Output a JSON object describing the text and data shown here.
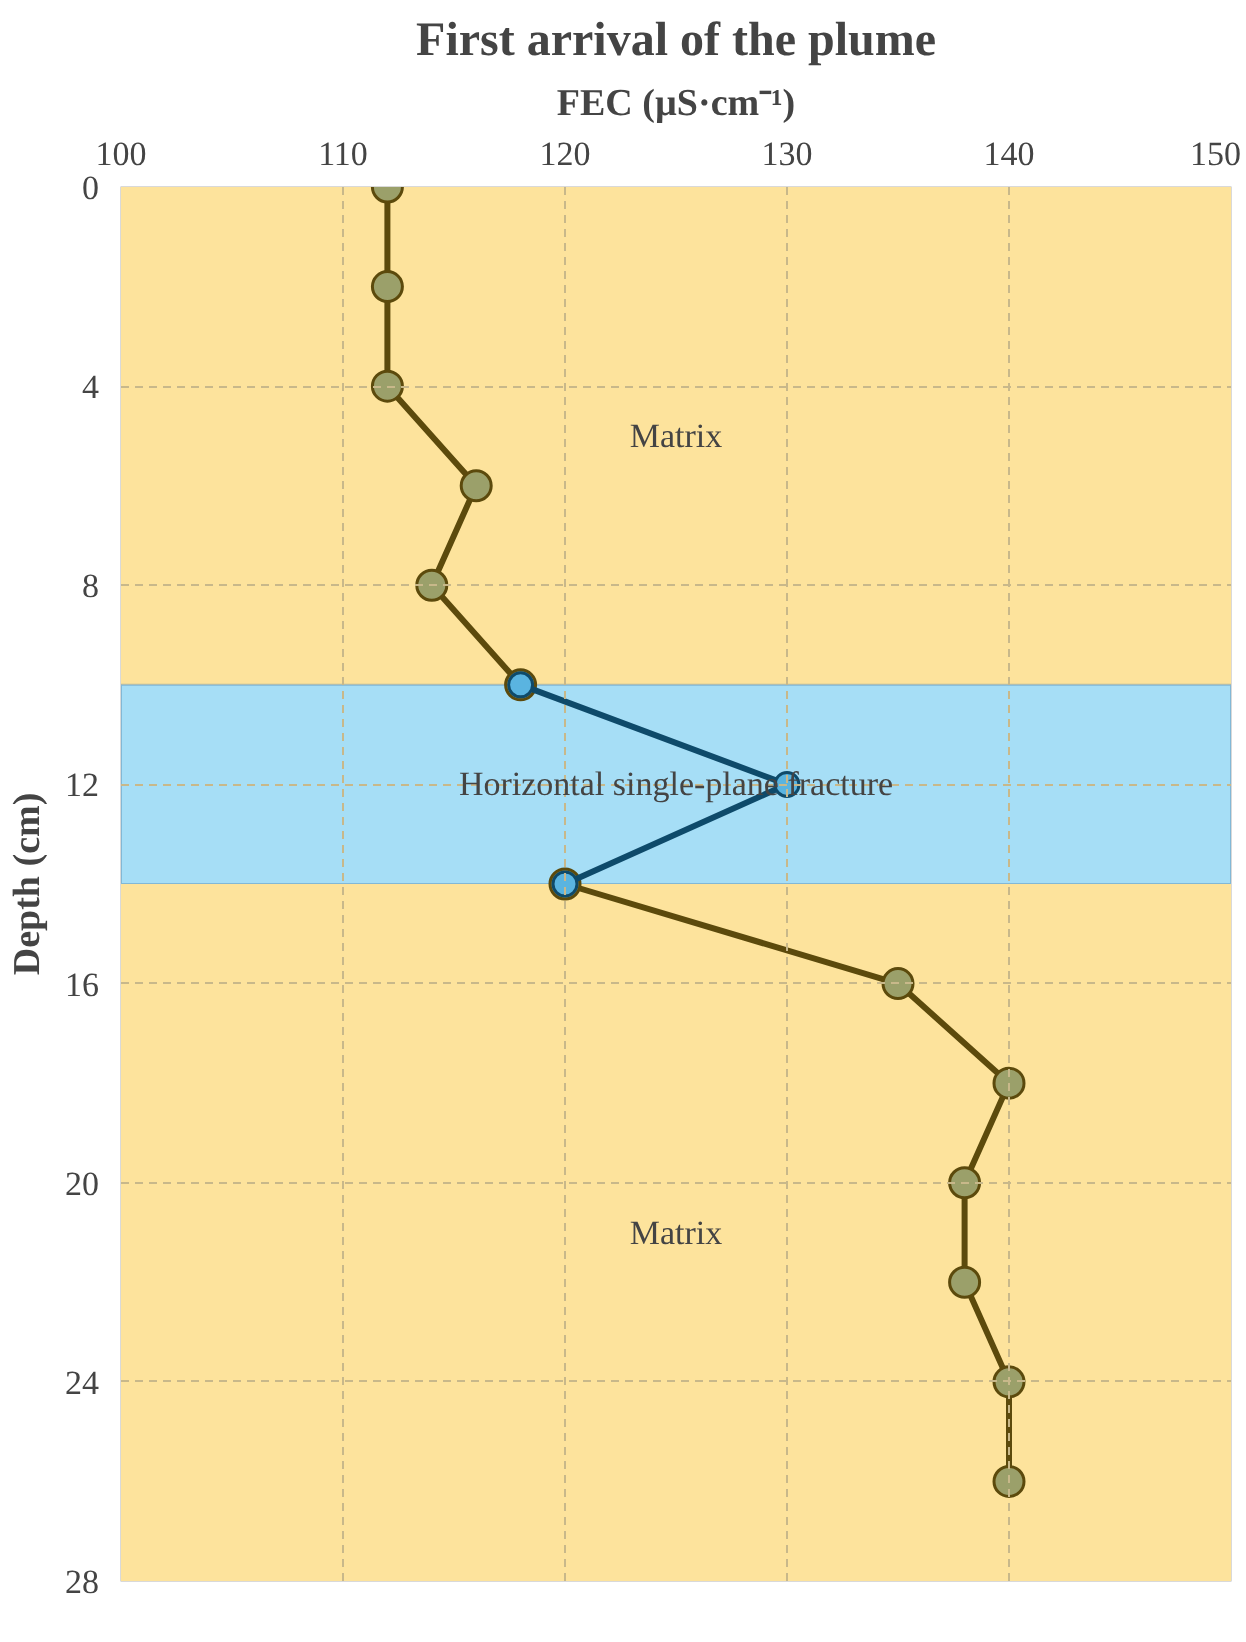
{
  "chart_data": {
    "type": "line",
    "title": "First arrival of the plume",
    "xlabel": "FEC (µS·cm⁻¹)",
    "ylabel": "Depth (cm)",
    "orientation": "horizontal",
    "x": [
      0,
      2,
      4,
      6,
      8,
      10,
      12,
      14,
      16,
      18,
      20,
      22,
      24,
      26
    ],
    "series": [
      {
        "color": "#5c4a0c",
        "values": [
          112,
          112,
          112,
          116,
          114,
          118,
          null,
          120,
          135,
          140,
          138,
          138,
          140,
          140
        ]
      },
      {
        "color": "#0e4a6a",
        "x": [
          10,
          12,
          14
        ],
        "values": [
          118,
          130,
          120
        ]
      }
    ],
    "xlim": [
      100,
      150
    ],
    "xticks": [
      100,
      110,
      120,
      130,
      140,
      150
    ],
    "ylim": [
      28,
      0
    ],
    "yticks": [
      0,
      4,
      8,
      12,
      16,
      20,
      24,
      28
    ],
    "grid": true,
    "marker": "circle",
    "line_style": "solid",
    "bands": [
      {
        "axis": "y",
        "from": 0,
        "to": 10,
        "label": "Matrix",
        "color": "#fde39c"
      },
      {
        "axis": "y",
        "from": 10,
        "to": 14,
        "label": "Horizontal single-plane fracture",
        "color": "#a6def6"
      },
      {
        "axis": "y",
        "from": 14,
        "to": 28,
        "label": "Matrix",
        "color": "#fde39c"
      }
    ]
  }
}
